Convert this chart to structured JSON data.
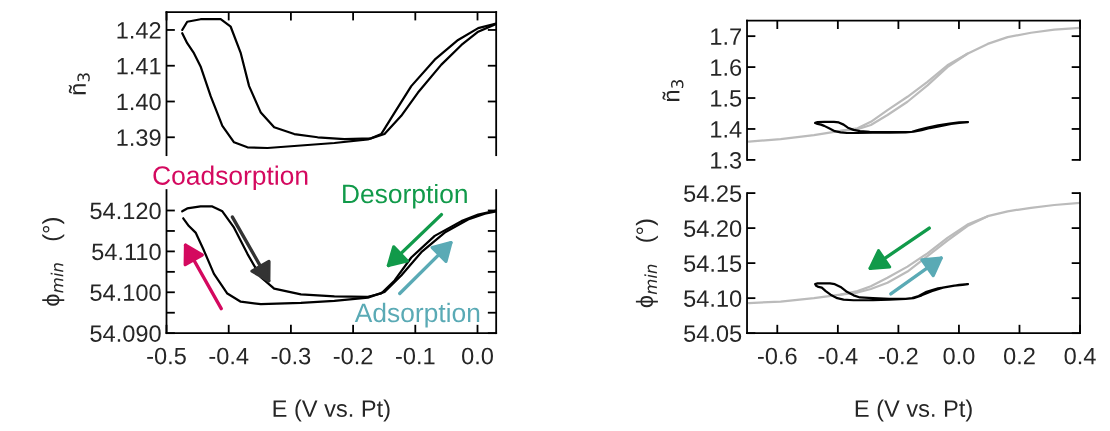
{
  "chart_data": [
    {
      "type": "line",
      "ylabel": "ñ$_{3}$",
      "xlim": [
        -0.5,
        0.03
      ],
      "ylim": [
        1.385,
        1.425
      ],
      "xticks": [
        -0.5,
        -0.4,
        -0.3,
        -0.2,
        -0.1,
        0.0
      ],
      "yticks": [
        {
          "value": 1.39,
          "label": "1.39"
        },
        {
          "value": 1.4,
          "label": "1.40"
        },
        {
          "value": 1.41,
          "label": "1.41"
        },
        {
          "value": 1.42,
          "label": "1.42"
        }
      ],
      "tick_labels": "y",
      "grid": false,
      "marker": "none",
      "line_style": "solid",
      "series": [
        {
          "color": "#000000",
          "x": [
            -0.4747,
            -0.4667,
            -0.4452,
            -0.4129,
            -0.3968,
            -0.3806,
            -0.3672,
            -0.3484,
            -0.3269,
            -0.2946,
            -0.257,
            -0.214,
            -0.171,
            -0.1548,
            -0.1333,
            -0.1065,
            -0.0688,
            -0.0312,
            0.0011,
            0.03
          ],
          "values": [
            1.42,
            1.4223,
            1.423,
            1.423,
            1.4209,
            1.4135,
            1.4043,
            1.3969,
            1.3928,
            1.3909,
            1.39,
            1.3895,
            1.3897,
            1.3909,
            1.3969,
            1.4043,
            1.4117,
            1.4172,
            1.4205,
            1.4218
          ]
        },
        {
          "color": "#000000",
          "x": [
            -0.4747,
            -0.4667,
            -0.4559,
            -0.4452,
            -0.429,
            -0.4102,
            -0.3914,
            -0.3699,
            -0.3376,
            -0.2839,
            -0.2301,
            -0.1763,
            -0.1495,
            -0.1226,
            -0.0957,
            -0.0581,
            -0.0258,
            0.0011,
            0.03
          ],
          "values": [
            1.4191,
            1.4163,
            1.4135,
            1.4098,
            1.4015,
            1.3932,
            1.3886,
            1.3872,
            1.387,
            1.3877,
            1.3884,
            1.3894,
            1.3909,
            1.396,
            1.4025,
            1.4103,
            1.4158,
            1.4195,
            1.4217
          ]
        }
      ]
    },
    {
      "type": "line",
      "xlabel": "E (V vs. Pt)",
      "ylabel": "ϕ$_{min}$   (°)",
      "xlim": [
        -0.5,
        0.03
      ],
      "ylim": [
        54.09,
        54.125
      ],
      "xticks": [
        {
          "value": -0.5,
          "label": "-0.5"
        },
        {
          "value": -0.4,
          "label": "-0.4"
        },
        {
          "value": -0.3,
          "label": "-0.3"
        },
        {
          "value": -0.2,
          "label": "-0.2"
        },
        {
          "value": -0.1,
          "label": "-0.1"
        },
        {
          "value": 0.0,
          "label": "0.0"
        }
      ],
      "yticks": [
        {
          "value": 54.09,
          "label": "54.090"
        },
        {
          "value": 54.095,
          "label": null
        },
        {
          "value": 54.1,
          "label": "54.100"
        },
        {
          "value": 54.105,
          "label": null
        },
        {
          "value": 54.11,
          "label": "54.110"
        },
        {
          "value": 54.115,
          "label": null
        },
        {
          "value": 54.12,
          "label": "54.120"
        }
      ],
      "grid": false,
      "marker": "none",
      "line_style": "solid",
      "annotations": [
        {
          "text": "Coadsorption",
          "x": -0.4398,
          "y": 54.1102
        },
        {
          "text": "Desorption",
          "x": -0.1333,
          "y": 54.1029
        },
        {
          "text": "Adsorption",
          "x": -0.0527,
          "y": 54.1146
        }
      ],
      "series": [
        {
          "color": "#000000",
          "x": [
            -0.4747,
            -0.4667,
            -0.4452,
            -0.4263,
            -0.4102,
            -0.3914,
            -0.3699,
            -0.3484,
            -0.3269,
            -0.2839,
            -0.2301,
            -0.1763,
            -0.1548,
            -0.1333,
            -0.1065,
            -0.0688,
            -0.0258,
            0.0011,
            0.03
          ],
          "values": [
            54.1198,
            54.1205,
            54.121,
            54.121,
            54.1198,
            54.1158,
            54.1094,
            54.1037,
            54.1009,
            54.0995,
            54.099,
            54.0989,
            54.0997,
            54.1029,
            54.1085,
            54.1138,
            54.1174,
            54.119,
            54.12
          ]
        },
        {
          "color": "#000000",
          "x": [
            -0.4731,
            -0.464,
            -0.4532,
            -0.4398,
            -0.4237,
            -0.4022,
            -0.3806,
            -0.3484,
            -0.2839,
            -0.2301,
            -0.1763,
            -0.1495,
            -0.1226,
            -0.0903,
            -0.0527,
            -0.0151,
            0.0118,
            0.03
          ],
          "values": [
            54.1181,
            54.1162,
            54.1146,
            54.1102,
            54.1045,
            54.0997,
            54.0977,
            54.0971,
            54.0974,
            54.0979,
            54.0987,
            54.1001,
            54.1041,
            54.1098,
            54.1146,
            54.1178,
            54.1192,
            54.1198
          ]
        }
      ]
    },
    {
      "type": "line",
      "ylabel": "ñ$_{3}$",
      "xlim": [
        -0.7,
        0.4
      ],
      "ylim": [
        1.3,
        1.75
      ],
      "xticks": [
        -0.6,
        -0.4,
        -0.2,
        0.0,
        0.2,
        0.4
      ],
      "yticks": [
        {
          "value": 1.3,
          "label": "1.3"
        },
        {
          "value": 1.4,
          "label": "1.4"
        },
        {
          "value": 1.5,
          "label": "1.5"
        },
        {
          "value": 1.6,
          "label": "1.6"
        },
        {
          "value": 1.7,
          "label": "1.7"
        }
      ],
      "tick_labels": "y",
      "grid": false,
      "marker": "none",
      "line_style": "solid",
      "series": [
        {
          "color": "#bbbbbb",
          "x": [
            -0.694,
            -0.589,
            -0.479,
            -0.391,
            -0.335,
            -0.291,
            -0.236,
            -0.17,
            -0.104,
            -0.038,
            0.028,
            0.095,
            0.161,
            0.238,
            0.315,
            0.4
          ],
          "values": [
            1.359,
            1.367,
            1.38,
            1.394,
            1.402,
            1.423,
            1.461,
            1.504,
            1.552,
            1.606,
            1.643,
            1.675,
            1.697,
            1.711,
            1.721,
            1.727
          ]
        },
        {
          "color": "#bbbbbb",
          "x": [
            0.028,
            -0.038,
            -0.104,
            -0.17,
            -0.236,
            -0.291,
            -0.335,
            -0.391
          ],
          "values": [
            1.643,
            1.6,
            1.541,
            1.488,
            1.445,
            1.413,
            1.399,
            1.394
          ]
        },
        {
          "color": "#000000",
          "x": [
            -0.475,
            -0.467,
            -0.445,
            -0.413,
            -0.397,
            -0.381,
            -0.367,
            -0.348,
            -0.327,
            -0.295,
            -0.257,
            -0.214,
            -0.171,
            -0.155,
            -0.133,
            -0.107,
            -0.069,
            -0.031,
            0.001,
            0.03,
            0.001,
            -0.026,
            -0.058,
            -0.096,
            -0.123,
            -0.15,
            -0.176,
            -0.23,
            -0.284,
            -0.338,
            -0.37,
            -0.391,
            -0.41,
            -0.429,
            -0.445,
            -0.456,
            -0.467,
            -0.475
          ],
          "values": [
            1.42,
            1.422,
            1.423,
            1.423,
            1.421,
            1.414,
            1.404,
            1.397,
            1.393,
            1.391,
            1.39,
            1.39,
            1.39,
            1.391,
            1.397,
            1.404,
            1.412,
            1.417,
            1.421,
            1.422,
            1.42,
            1.416,
            1.41,
            1.403,
            1.396,
            1.391,
            1.389,
            1.388,
            1.388,
            1.387,
            1.387,
            1.389,
            1.393,
            1.402,
            1.41,
            1.414,
            1.416,
            1.419
          ]
        }
      ]
    },
    {
      "type": "line",
      "xlabel": "E (V vs. Pt)",
      "ylabel": "ϕ$_{min}$   (°)",
      "xlim": [
        -0.7,
        0.4
      ],
      "ylim": [
        54.05,
        54.25
      ],
      "xticks": [
        {
          "value": -0.6,
          "label": "-0.6"
        },
        {
          "value": -0.4,
          "label": "-0.4"
        },
        {
          "value": -0.2,
          "label": "-0.2"
        },
        {
          "value": 0.0,
          "label": "0.0"
        },
        {
          "value": 0.2,
          "label": "0.2"
        },
        {
          "value": 0.4,
          "label": "0.4"
        }
      ],
      "yticks": [
        {
          "value": 54.05,
          "label": "54.05"
        },
        {
          "value": 54.1,
          "label": "54.10"
        },
        {
          "value": 54.15,
          "label": "54.15"
        },
        {
          "value": 54.2,
          "label": "54.20"
        },
        {
          "value": 54.25,
          "label": "54.25"
        }
      ],
      "grid": false,
      "marker": "none",
      "line_style": "solid",
      "series": [
        {
          "color": "#bbbbbb",
          "x": [
            -0.694,
            -0.589,
            -0.479,
            -0.391,
            -0.335,
            -0.291,
            -0.236,
            -0.17,
            -0.104,
            -0.038,
            0.028,
            0.095,
            0.161,
            0.238,
            0.315,
            0.4
          ],
          "values": [
            54.093,
            54.095,
            54.1,
            54.105,
            54.11,
            54.117,
            54.129,
            54.145,
            54.164,
            54.186,
            54.205,
            54.217,
            54.224,
            54.229,
            54.233,
            54.236
          ]
        },
        {
          "color": "#bbbbbb",
          "x": [
            0.095,
            0.028,
            -0.038,
            -0.104,
            -0.17,
            -0.236,
            -0.291,
            -0.335,
            -0.391
          ],
          "values": [
            54.217,
            54.203,
            54.182,
            54.16,
            54.138,
            54.122,
            54.113,
            54.108,
            54.105
          ]
        },
        {
          "color": "#000000",
          "x": [
            -0.475,
            -0.467,
            -0.445,
            -0.426,
            -0.41,
            -0.391,
            -0.37,
            -0.348,
            -0.327,
            -0.284,
            -0.23,
            -0.176,
            -0.155,
            -0.133,
            -0.107,
            -0.069,
            -0.026,
            0.001,
            0.03,
            0.012,
            -0.015,
            -0.053,
            -0.09,
            -0.123,
            -0.15,
            -0.176,
            -0.23,
            -0.284,
            -0.348,
            -0.381,
            -0.402,
            -0.424,
            -0.44,
            -0.453,
            -0.464,
            -0.473
          ],
          "values": [
            54.12,
            54.121,
            54.121,
            54.121,
            54.12,
            54.116,
            54.109,
            54.104,
            54.101,
            54.1,
            54.099,
            54.099,
            54.1,
            54.103,
            54.109,
            54.114,
            54.117,
            54.119,
            54.12,
            54.119,
            54.118,
            54.115,
            54.11,
            54.104,
            54.1,
            54.099,
            54.098,
            54.097,
            54.097,
            54.098,
            54.1,
            54.105,
            54.11,
            54.115,
            54.116,
            54.118
          ]
        }
      ]
    }
  ]
}
